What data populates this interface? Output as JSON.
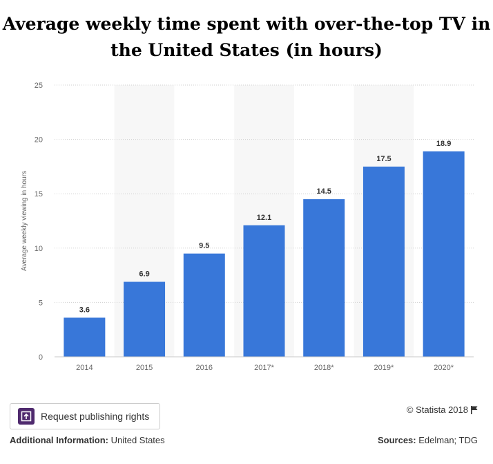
{
  "chart_data": {
    "type": "bar",
    "title": "Average weekly time spent with over-the-top TV in the United States (in hours)",
    "ylabel": "Average weekly viewing in hours",
    "xlabel": "",
    "categories": [
      "2014",
      "2015",
      "2016",
      "2017*",
      "2018*",
      "2019*",
      "2020*"
    ],
    "values": [
      3.6,
      6.9,
      9.5,
      12.1,
      14.5,
      17.5,
      18.9
    ],
    "data_labels": [
      "3.6",
      "6.9",
      "9.5",
      "12.1",
      "14.5",
      "17.5",
      "18.9"
    ],
    "ylim": [
      0,
      25
    ],
    "yticks": [
      0,
      5,
      10,
      15,
      20,
      25
    ],
    "grid": true,
    "legend": "none",
    "bar_color": "#3877d9",
    "stripe_color": "#f7f7f7"
  },
  "footer": {
    "rights_button_label": "Request publishing rights",
    "copyright": "© Statista 2018",
    "additional_label": "Additional Information:",
    "additional_value": "United States",
    "sources_label": "Sources:",
    "sources_value": "Edelman; TDG"
  },
  "colors": {
    "brand_purple": "#4f2a6e"
  }
}
